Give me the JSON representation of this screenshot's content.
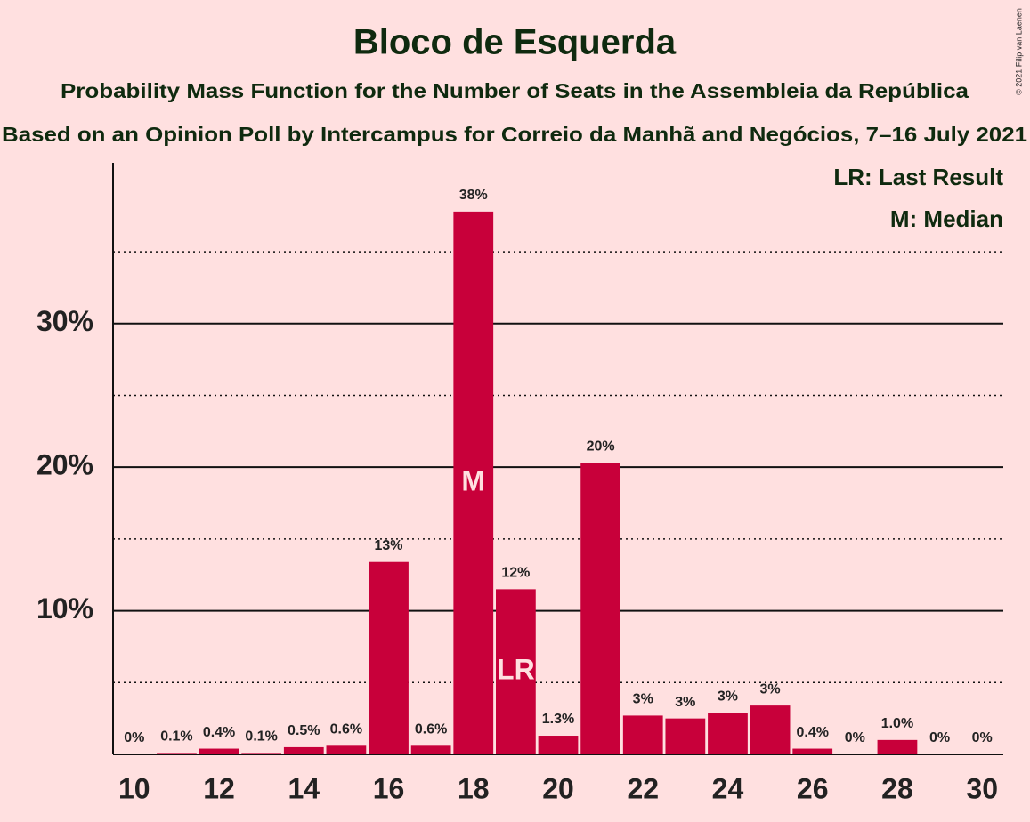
{
  "chart_data": {
    "type": "bar",
    "title": "Bloco de Esquerda",
    "subtitle": "Probability Mass Function for the Number of Seats in the Assembleia da República",
    "subtitle2": "Based on an Opinion Poll by Intercampus for Correio da Manhã and Negócios, 7–16 July 2021",
    "x": [
      10,
      11,
      12,
      13,
      14,
      15,
      16,
      17,
      18,
      19,
      20,
      21,
      22,
      23,
      24,
      25,
      26,
      27,
      28,
      29,
      30
    ],
    "values": [
      0,
      0.1,
      0.4,
      0.1,
      0.5,
      0.6,
      13.4,
      0.6,
      37.8,
      11.5,
      1.3,
      20.3,
      2.7,
      2.5,
      2.9,
      3.4,
      0.4,
      0,
      1.0,
      0,
      0
    ],
    "value_labels": [
      "0%",
      "0.1%",
      "0.4%",
      "0.1%",
      "0.5%",
      "0.6%",
      "13%",
      "0.6%",
      "38%",
      "12%",
      "1.3%",
      "20%",
      "3%",
      "3%",
      "3%",
      "3%",
      "0.4%",
      "0%",
      "1.0%",
      "0%",
      "0%"
    ],
    "color": "#c8003a",
    "xlim": [
      9.5,
      30.5
    ],
    "xticks": [
      10,
      12,
      14,
      16,
      18,
      20,
      22,
      24,
      26,
      28,
      30
    ],
    "ylim": [
      0,
      41.2
    ],
    "yticks": [
      {
        "value": 10,
        "label": "10%"
      },
      {
        "value": 20,
        "label": "20%"
      },
      {
        "value": 30,
        "label": "30%"
      }
    ],
    "minor_yticks": [
      5,
      15,
      25,
      35
    ],
    "grid": true,
    "annotations": [
      {
        "x": 18,
        "text": "M"
      },
      {
        "x": 19,
        "text": "LR"
      }
    ],
    "legend": [
      "LR: Last Result",
      "M: Median"
    ],
    "legend_position": "upper right",
    "copyright": "© 2021 Filip van Laenen"
  }
}
